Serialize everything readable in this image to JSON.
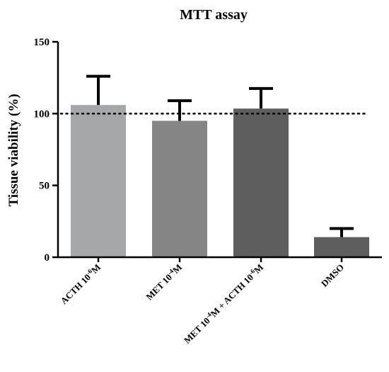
{
  "chart_data": {
    "type": "bar",
    "title": "MTT assay",
    "xlabel": "",
    "ylabel": "Tissue viability (%)",
    "ylim": [
      0,
      150
    ],
    "yticks": [
      0,
      50,
      100,
      150
    ],
    "reference_line": {
      "value": 100,
      "style": "dotted"
    },
    "categories": [
      {
        "base": "ACTH 10",
        "sup": "-6",
        "rest": "M"
      },
      {
        "base": "MET 10",
        "sup": "-4",
        "rest": "M"
      },
      {
        "base": "MET 10",
        "sup": "-4",
        "rest": "M + ACTH 10",
        "sup2": "-6",
        "rest2": "M"
      },
      {
        "base": "DMSO"
      }
    ],
    "values": [
      106,
      95,
      103.5,
      14
    ],
    "errors": [
      20,
      14,
      14,
      6
    ],
    "colors": [
      "#a6a7a9",
      "#858585",
      "#5e5e5e",
      "#5e5e5e"
    ],
    "grid": false,
    "legend": "none"
  }
}
